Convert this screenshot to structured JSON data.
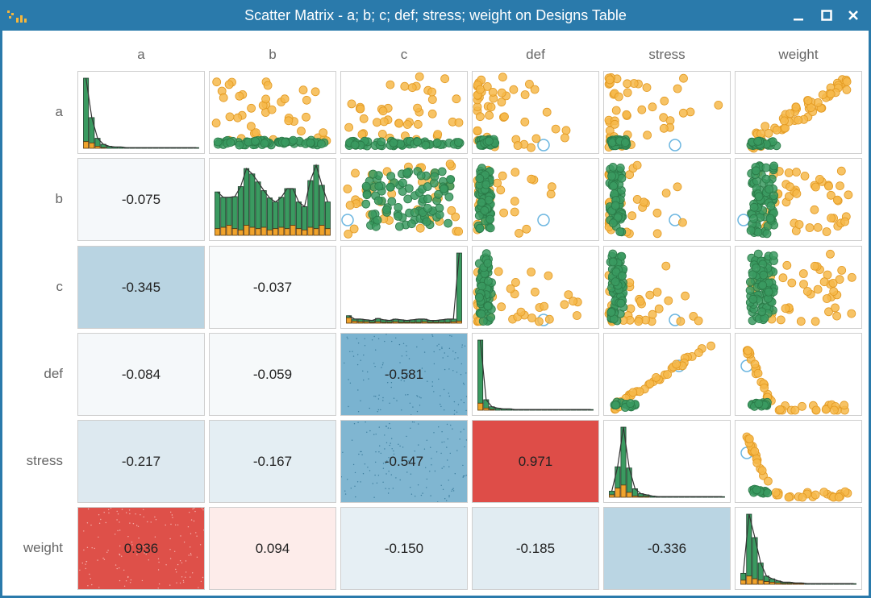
{
  "window": {
    "title": "Scatter Matrix - a; b; c; def; stress; weight on Designs Table",
    "minimize_glyph": "_",
    "maximize_glyph": "□",
    "close_glyph": "✕"
  },
  "colors": {
    "titlebar": "#2a7aab",
    "green_points": "#3a9a60",
    "green_stroke": "#2b7a48",
    "orange_points": "#f6b84a",
    "hist_green": "#3a9a60",
    "hist_orange": "#f0a32c",
    "highlight_ring": "#6cb6e0",
    "positive_strong": "#e0504a",
    "negative_blue": "#6aa8c8"
  },
  "chart_data": {
    "type": "scatter_matrix",
    "variables": [
      "a",
      "b",
      "c",
      "def",
      "stress",
      "weight"
    ],
    "correlations": [
      {
        "row": "b",
        "col": "a",
        "value": "-0.075",
        "bg": "#f5f8fa"
      },
      {
        "row": "c",
        "col": "a",
        "value": "-0.345",
        "bg": "#b9d4e2"
      },
      {
        "row": "c",
        "col": "b",
        "value": "-0.037",
        "bg": "#f8fafb"
      },
      {
        "row": "def",
        "col": "a",
        "value": "-0.084",
        "bg": "#f5f8fa"
      },
      {
        "row": "def",
        "col": "b",
        "value": "-0.059",
        "bg": "#f6f9fa"
      },
      {
        "row": "def",
        "col": "c",
        "value": "-0.581",
        "bg": "#7ab3d0"
      },
      {
        "row": "stress",
        "col": "a",
        "value": "-0.217",
        "bg": "#dde9f0"
      },
      {
        "row": "stress",
        "col": "b",
        "value": "-0.167",
        "bg": "#e4eef3"
      },
      {
        "row": "stress",
        "col": "c",
        "value": "-0.547",
        "bg": "#80b6d1"
      },
      {
        "row": "stress",
        "col": "def",
        "value": "0.971",
        "bg": "#de4d48"
      },
      {
        "row": "weight",
        "col": "a",
        "value": "0.936",
        "bg": "#de5049"
      },
      {
        "row": "weight",
        "col": "b",
        "value": "0.094",
        "bg": "#fdecea"
      },
      {
        "row": "weight",
        "col": "c",
        "value": "-0.150",
        "bg": "#e6eff4"
      },
      {
        "row": "weight",
        "col": "def",
        "value": "-0.185",
        "bg": "#e1ecf2"
      },
      {
        "row": "weight",
        "col": "stress",
        "value": "-0.336",
        "bg": "#bad5e3"
      }
    ],
    "histograms": {
      "a": {
        "green": [
          95,
          38,
          12,
          5,
          3,
          2,
          2,
          1,
          1,
          1,
          1,
          1,
          1,
          1,
          1,
          1,
          1,
          1,
          1,
          1
        ],
        "orange": [
          10,
          8,
          3,
          1,
          0,
          0,
          0,
          0,
          0,
          0,
          0,
          0,
          0,
          0,
          0,
          0,
          0,
          0,
          0,
          0
        ]
      },
      "b": {
        "green": [
          55,
          45,
          42,
          48,
          65,
          85,
          80,
          70,
          55,
          48,
          40,
          45,
          60,
          55,
          40,
          35,
          70,
          95,
          60,
          40
        ],
        "orange": [
          10,
          12,
          15,
          10,
          8,
          15,
          12,
          10,
          12,
          8,
          10,
          12,
          10,
          15,
          10,
          8,
          12,
          10,
          15,
          10
        ]
      },
      "c": {
        "green": [
          3,
          3,
          4,
          3,
          3,
          5,
          4,
          3,
          4,
          4,
          3,
          4,
          5,
          4,
          3,
          3,
          4,
          5,
          4,
          100
        ],
        "orange": [
          8,
          3,
          2,
          2,
          1,
          2,
          1,
          1,
          2,
          1,
          1,
          1,
          1,
          2,
          1,
          1,
          1,
          1,
          2,
          3
        ]
      },
      "def": {
        "green": [
          90,
          12,
          4,
          3,
          2,
          2,
          1,
          1,
          1,
          1,
          1,
          1,
          1,
          1,
          1,
          1,
          1,
          1,
          1,
          1
        ],
        "orange": [
          10,
          3,
          1,
          0,
          0,
          0,
          0,
          0,
          0,
          0,
          0,
          0,
          0,
          0,
          0,
          0,
          0,
          0,
          0,
          0
        ]
      },
      "stress": {
        "green": [
          6,
          35,
          95,
          40,
          12,
          5,
          3,
          2,
          1,
          1,
          1,
          1,
          1,
          1,
          1,
          1,
          1,
          1,
          1,
          1
        ],
        "orange": [
          4,
          15,
          20,
          8,
          2,
          1,
          1,
          0,
          0,
          0,
          0,
          0,
          0,
          0,
          0,
          0,
          0,
          0,
          0,
          0
        ]
      },
      "weight": {
        "green": [
          10,
          90,
          60,
          25,
          8,
          5,
          3,
          2,
          2,
          1,
          1,
          1,
          1,
          1,
          1,
          1,
          1,
          1,
          1,
          1
        ],
        "orange": [
          6,
          12,
          8,
          6,
          4,
          3,
          2,
          1,
          1,
          1,
          1,
          0,
          0,
          0,
          0,
          0,
          0,
          0,
          0,
          0
        ]
      }
    },
    "scatter_shapes": {
      "a|b": "b_vs_a",
      "a|c": "c_vs_a",
      "a|def": "def_vs_a",
      "a|stress": "stress_vs_a",
      "a|weight": "weight_vs_a",
      "b|c": "c_vs_b",
      "b|def": "def_vs_b",
      "b|stress": "stress_vs_b",
      "b|weight": "weight_vs_b",
      "c|def": "def_vs_c",
      "c|stress": "stress_vs_c",
      "c|weight": "weight_vs_c",
      "def|stress": "stress_vs_def",
      "def|weight": "weight_vs_def",
      "stress|weight": "weight_vs_stress"
    }
  }
}
